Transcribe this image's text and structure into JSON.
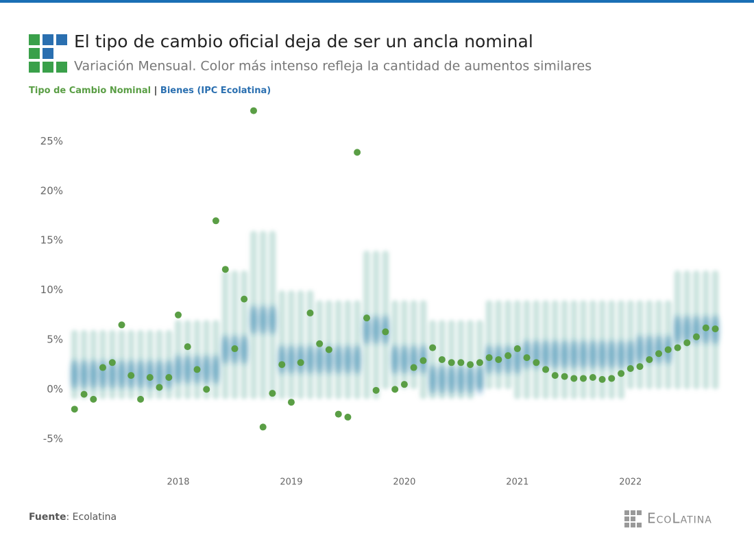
{
  "chart_data": {
    "type": "scatter",
    "title": "El tipo de cambio oficial deja de ser un ancla nominal",
    "subtitle": "Variación Mensual. Color más intenso refleja la cantidad de aumentos similares",
    "legend_separator": "|",
    "source_label": "Fuente",
    "source_text": ": Ecolatina",
    "logo": "EcoLatina",
    "xlim": [
      2017.03,
      2022.85
    ],
    "xticks": [
      2018,
      2019,
      2020,
      2021,
      2022
    ],
    "ylim": [
      -8.4,
      28.9
    ],
    "yticks": [
      {
        "value": -5,
        "label": "-5%"
      },
      {
        "value": 0,
        "label": "0%"
      },
      {
        "value": 5,
        "label": "5%"
      },
      {
        "value": 10,
        "label": "10%"
      },
      {
        "value": 15,
        "label": "15%"
      },
      {
        "value": 20,
        "label": "20%"
      },
      {
        "value": 25,
        "label": "25%"
      }
    ],
    "x": [
      2017.083,
      2017.167,
      2017.25,
      2017.333,
      2017.417,
      2017.5,
      2017.583,
      2017.667,
      2017.75,
      2017.833,
      2017.917,
      2018,
      2018.083,
      2018.167,
      2018.25,
      2018.333,
      2018.417,
      2018.5,
      2018.583,
      2018.667,
      2018.75,
      2018.833,
      2018.917,
      2019,
      2019.083,
      2019.167,
      2019.25,
      2019.333,
      2019.417,
      2019.5,
      2019.583,
      2019.667,
      2019.75,
      2019.833,
      2019.917,
      2020,
      2020.083,
      2020.167,
      2020.25,
      2020.333,
      2020.417,
      2020.5,
      2020.583,
      2020.667,
      2020.75,
      2020.833,
      2020.917,
      2021,
      2021.083,
      2021.167,
      2021.25,
      2021.333,
      2021.417,
      2021.5,
      2021.583,
      2021.667,
      2021.75,
      2021.833,
      2021.917,
      2022,
      2022.083,
      2022.167,
      2022.25,
      2022.333,
      2022.417,
      2022.5,
      2022.583,
      2022.667,
      2022.75
    ],
    "series": [
      {
        "name": "Tipo de Cambio Nominal",
        "color": "#5a9e45",
        "values": [
          -2,
          -0.5,
          -1,
          2.2,
          2.7,
          6.5,
          1.4,
          -1,
          1.2,
          0.2,
          1.2,
          7.5,
          4.3,
          2,
          0,
          17,
          12.1,
          4.1,
          9.1,
          28.1,
          -3.8,
          -0.4,
          2.5,
          -1.3,
          2.7,
          7.7,
          4.6,
          4,
          -2.5,
          -2.8,
          23.9,
          7.2,
          -0.1,
          5.8,
          0,
          0.5,
          2.2,
          2.9,
          4.2,
          3,
          2.7,
          2.7,
          2.5,
          2.7,
          3.2,
          3,
          3.4,
          4.1,
          3.2,
          2.7,
          2,
          1.4,
          1.3,
          1.1,
          1.1,
          1.2,
          1,
          1.1,
          1.6,
          2.1,
          2.3,
          3,
          3.6,
          4,
          4.2,
          4.7,
          5.3,
          6.2,
          6.1
        ]
      },
      {
        "name": "Bienes (IPC Ecolatina)",
        "color": "#2a7bb0",
        "low": [
          -1,
          -1,
          -1,
          -1,
          -1,
          -1,
          -1,
          -1,
          -1,
          -1,
          -1,
          -1,
          -1,
          -1,
          -1,
          -1,
          -1,
          -1,
          -1,
          -1,
          -1,
          -1,
          -1,
          -1,
          -1,
          -1,
          -1,
          -1,
          -1,
          -1,
          -1,
          -1,
          -1,
          0,
          0,
          0,
          0,
          -1,
          -1,
          -1,
          -1,
          -1,
          -1,
          0,
          0,
          0,
          0,
          -1,
          -1,
          -1,
          -1,
          -1,
          -1,
          -1,
          -1,
          -1,
          -1,
          -1,
          -1,
          0,
          0,
          0,
          0,
          0,
          0,
          0,
          0,
          0,
          0
        ],
        "center": [
          1.5,
          1.5,
          1.5,
          1.5,
          1.5,
          1.5,
          1.5,
          1.5,
          1.5,
          1.5,
          1.5,
          2,
          2,
          2,
          2,
          2,
          4,
          4,
          4,
          7,
          7,
          7,
          3,
          3,
          3,
          3,
          3,
          3,
          3,
          3,
          3,
          6,
          6,
          6,
          3,
          3,
          3,
          3,
          1,
          1,
          1,
          1,
          1,
          1,
          3,
          3,
          3,
          3,
          3.5,
          3.5,
          3.5,
          3.5,
          3.5,
          3.5,
          3.5,
          3.5,
          3.5,
          3.5,
          3.5,
          3.5,
          4,
          4,
          4,
          4,
          6,
          6,
          6,
          6,
          6
        ],
        "high": [
          6,
          6,
          6,
          6,
          6,
          6,
          6,
          6,
          6,
          6,
          6,
          7,
          7,
          7,
          7,
          7,
          12,
          12,
          12,
          16,
          16,
          16,
          10,
          10,
          10,
          10,
          9,
          9,
          9,
          9,
          9,
          14,
          14,
          14,
          9,
          9,
          9,
          9,
          7,
          7,
          7,
          7,
          7,
          7,
          9,
          9,
          9,
          9,
          9,
          9,
          9,
          9,
          9,
          9,
          9,
          9,
          9,
          9,
          9,
          9,
          9,
          9,
          9,
          9,
          12,
          12,
          12,
          12,
          12
        ]
      }
    ]
  }
}
